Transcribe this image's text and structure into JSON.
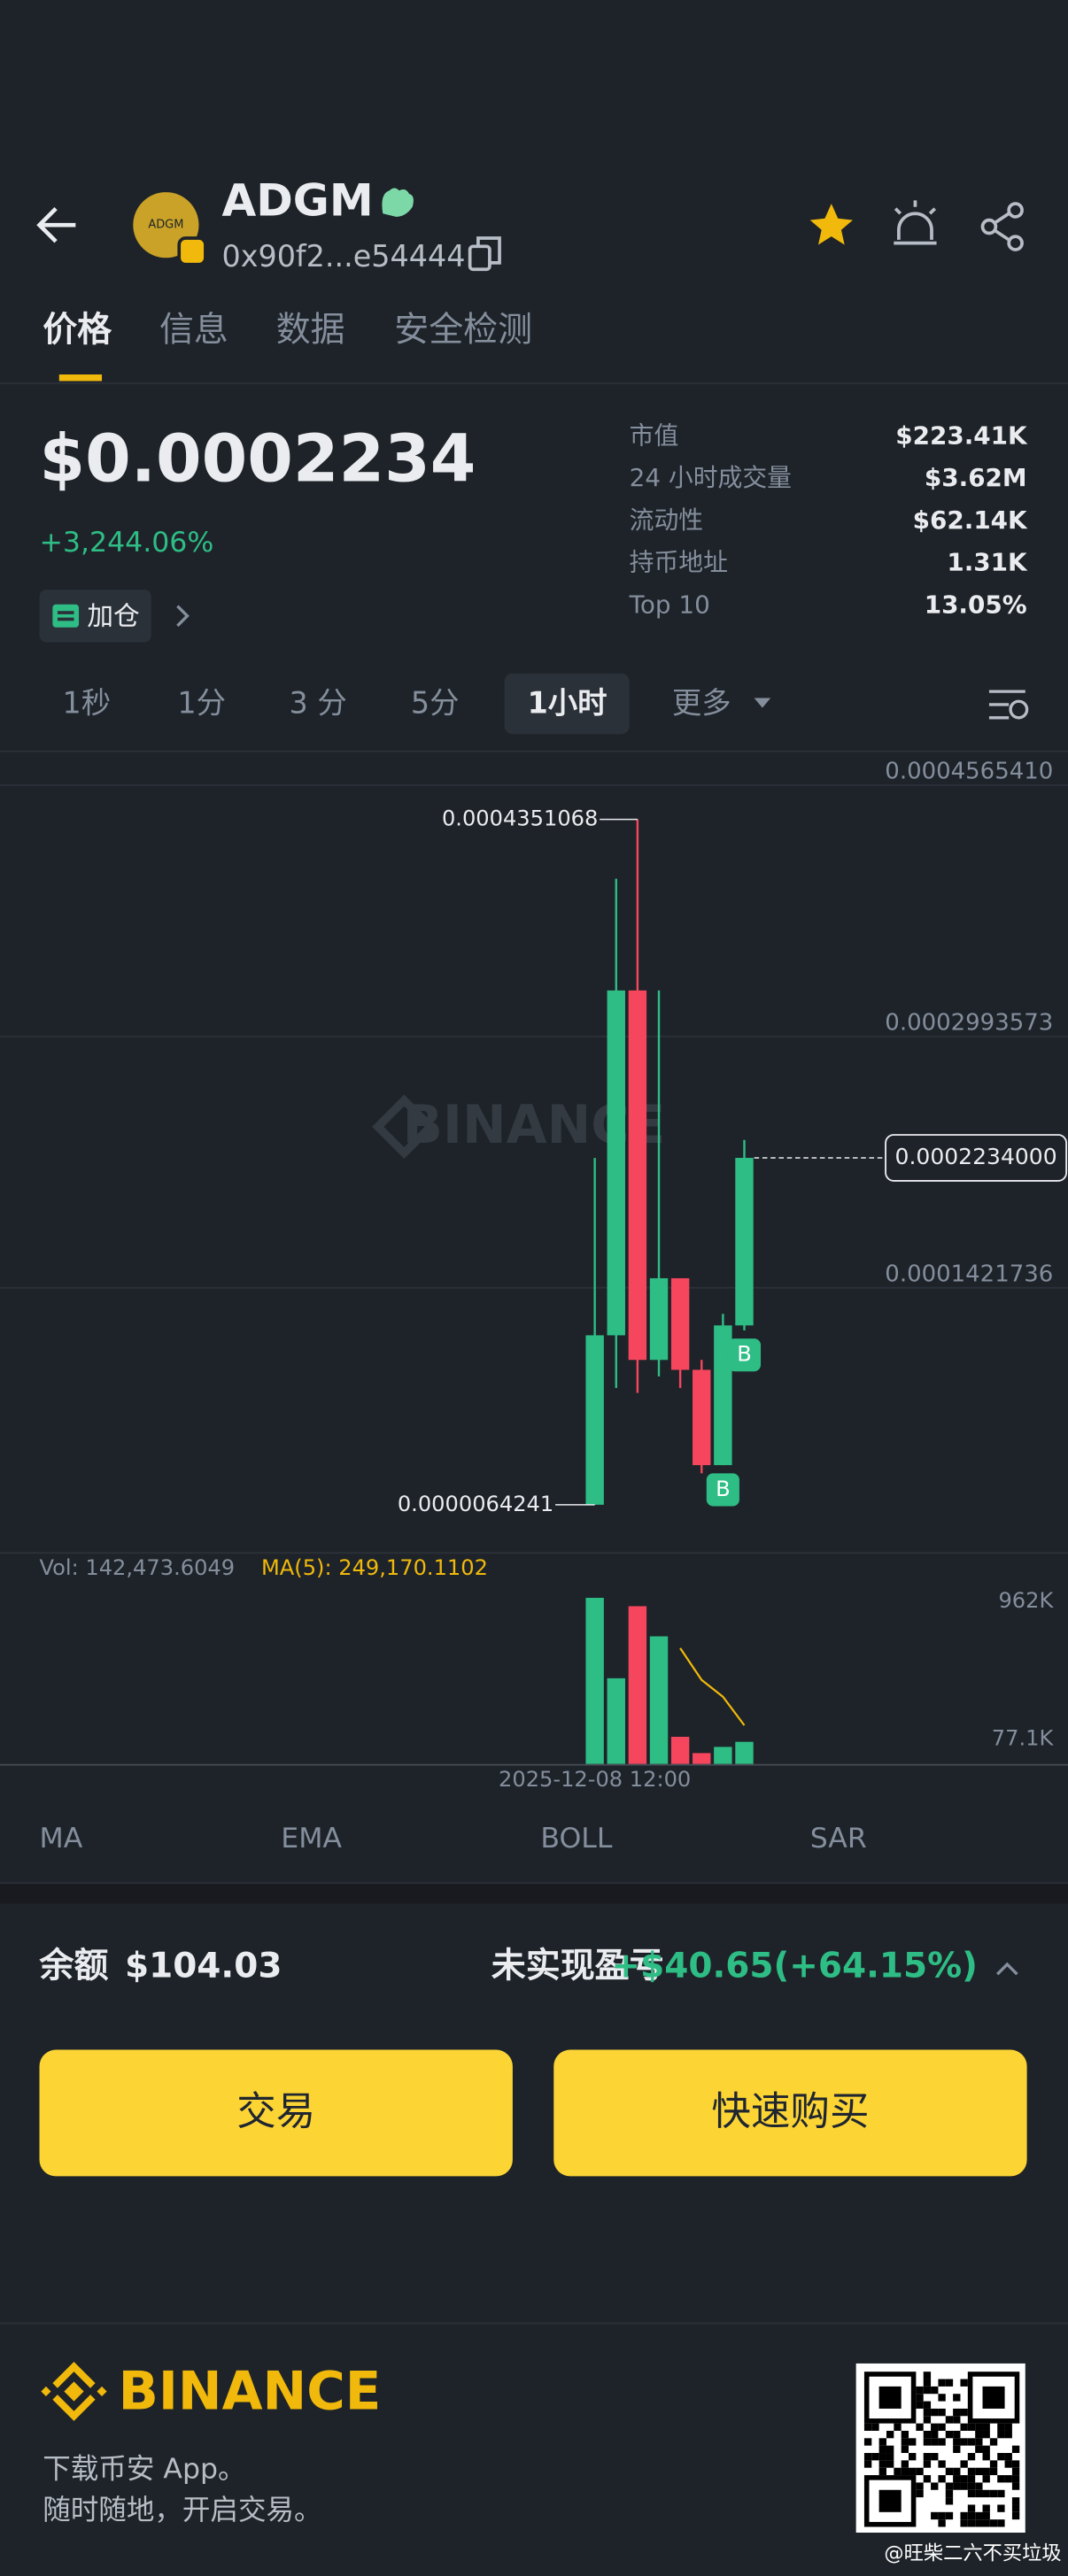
{
  "header": {
    "symbol": "ADGM",
    "logo_text": "ADGM",
    "address": "0x90f2...e54444"
  },
  "tabs": [
    "价格",
    "信息",
    "数据",
    "安全检测"
  ],
  "price": {
    "current": "$0.0002234",
    "change": "+3,244.06%",
    "add_button": "加仓"
  },
  "stats": [
    {
      "label": "市值",
      "value": "$223.41K"
    },
    {
      "label": "24 小时成交量",
      "value": "$3.62M"
    },
    {
      "label": "流动性",
      "value": "$62.14K"
    },
    {
      "label": "持币地址",
      "value": "1.31K"
    },
    {
      "label": "Top 10",
      "value": "13.05%"
    }
  ],
  "intervals": [
    "1秒",
    "1分",
    "3 分",
    "5分",
    "1小时",
    "更多"
  ],
  "chart": {
    "type": "candlestick",
    "watermark": "BINANCE",
    "x": [
      "2025-12-08 12:00",
      null,
      null,
      null,
      null,
      null,
      null,
      null
    ],
    "open": [
      6.4241e-06,
      0.0001124,
      0.0003281,
      9.7e-05,
      0.0001481,
      9.08e-05,
      3.12e-05,
      0.0001186
    ],
    "high": [
      0.0002233,
      0.000398,
      0.0004351068,
      0.0003281,
      0.0001481,
      9.7e-05,
      0.0001258,
      0.0002346
    ],
    "low": [
      6.4241e-06,
      7.95e-05,
      7.64e-05,
      8.67e-05,
      7.95e-05,
      2.61e-05,
      3.12e-05,
      0.0001155
    ],
    "close": [
      0.0001124,
      0.0003281,
      9.7e-05,
      0.0001481,
      9.08e-05,
      3.12e-05,
      0.0001186,
      0.0002234
    ],
    "last_label": "0.0002234000",
    "buy_marker": "B",
    "ylim": [
      -2.32e-05,
      0.0004771
    ],
    "yticks": [
      {
        "value": 0.000456541,
        "label": "0.0004565410"
      },
      {
        "value": 0.0002993573,
        "label": "0.0002993573"
      },
      {
        "value": 0.0001421736,
        "label": "0.0001421736"
      }
    ],
    "volume": [
      1070000,
      552000,
      1016000,
      822000,
      175000,
      70000,
      110000,
      142473.6049
    ],
    "ma5": [
      null,
      null,
      null,
      null,
      746000,
      541000,
      433000,
      249170.1102
    ],
    "volume_label": "Vol: 142,473.6049",
    "ma_label": "MA(5): 249,170.1102",
    "vol_ylim": [
      0,
      1100000
    ],
    "vol_ticks": [
      {
        "value": 962000,
        "label": "962K"
      },
      {
        "value": 77100,
        "label": "77.1K"
      }
    ],
    "up_color": "#2ebd85",
    "down_color": "#f6465d",
    "ma_color": "#f0b90b"
  },
  "indicators": [
    "MA",
    "EMA",
    "BOLL",
    "SAR"
  ],
  "balance": {
    "label": "余额",
    "value": "$104.03",
    "pnl_label": "未实现盈亏",
    "pnl": "+$40.65(+64.15%)"
  },
  "buttons": [
    "交易",
    "快速购买"
  ],
  "footer": {
    "brand": "BINANCE",
    "line1": "下载币安 App。",
    "line2": "随时随地，开启交易。",
    "watermark": "@旺柴二六不买垃圾"
  }
}
